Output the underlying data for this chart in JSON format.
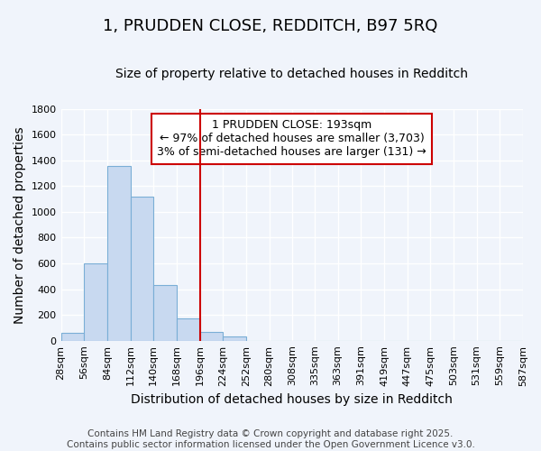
{
  "title": "1, PRUDDEN CLOSE, REDDITCH, B97 5RQ",
  "subtitle": "Size of property relative to detached houses in Redditch",
  "xlabel": "Distribution of detached houses by size in Redditch",
  "ylabel": "Number of detached properties",
  "bar_edges": [
    28,
    56,
    84,
    112,
    140,
    168,
    196,
    224,
    252,
    280,
    308,
    335,
    363,
    391,
    419,
    447,
    475,
    503,
    531,
    559,
    587
  ],
  "bar_heights": [
    60,
    600,
    1360,
    1120,
    430,
    170,
    70,
    35,
    0,
    0,
    0,
    0,
    0,
    0,
    0,
    0,
    0,
    0,
    0,
    0
  ],
  "bar_color": "#c8d9f0",
  "bar_edge_color": "#7aaed6",
  "property_line_x": 196,
  "property_line_color": "#cc0000",
  "annotation_text": "1 PRUDDEN CLOSE: 193sqm\n← 97% of detached houses are smaller (3,703)\n3% of semi-detached houses are larger (131) →",
  "annotation_box_color": "#ffffff",
  "annotation_box_edge_color": "#cc0000",
  "ylim": [
    0,
    1800
  ],
  "yticks": [
    0,
    200,
    400,
    600,
    800,
    1000,
    1200,
    1400,
    1600,
    1800
  ],
  "tick_labels": [
    "28sqm",
    "56sqm",
    "84sqm",
    "112sqm",
    "140sqm",
    "168sqm",
    "196sqm",
    "224sqm",
    "252sqm",
    "280sqm",
    "308sqm",
    "335sqm",
    "363sqm",
    "391sqm",
    "419sqm",
    "447sqm",
    "475sqm",
    "503sqm",
    "531sqm",
    "559sqm",
    "587sqm"
  ],
  "bg_color": "#f0f4fb",
  "plot_bg_color": "#f0f4fb",
  "footer_text": "Contains HM Land Registry data © Crown copyright and database right 2025.\nContains public sector information licensed under the Open Government Licence v3.0.",
  "title_fontsize": 13,
  "subtitle_fontsize": 10,
  "axis_fontsize": 10,
  "tick_fontsize": 8,
  "footer_fontsize": 7.5,
  "annotation_fontsize": 9
}
